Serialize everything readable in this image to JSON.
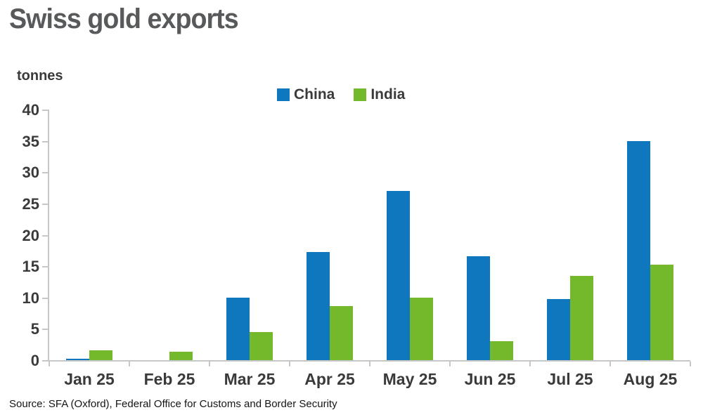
{
  "title": "Swiss gold exports",
  "source": "Source: SFA (Oxford), Federal Office for Customs and Border Security",
  "colors": {
    "china_blue": "#0F77BD",
    "india_green": "#74B82C",
    "axis_gray": "#C6C7C8",
    "title_gray": "#58595B",
    "label_gray": "#3A3A3A"
  },
  "chart_data": {
    "type": "bar",
    "title": "Swiss gold exports",
    "ylabel": "tonnes",
    "xlabel": "",
    "categories": [
      "Jan 25",
      "Feb 25",
      "Mar 25",
      "Apr 25",
      "May 25",
      "Jun 25",
      "Jul 25",
      "Aug 25"
    ],
    "series": [
      {
        "name": "China",
        "color": "#0F77BD",
        "values": [
          0.2,
          0,
          10,
          17.3,
          27,
          16.6,
          9.8,
          35
        ]
      },
      {
        "name": "India",
        "color": "#74B82C",
        "values": [
          1.6,
          1.3,
          4.5,
          8.6,
          10,
          3,
          13.5,
          15.2
        ]
      }
    ],
    "ylim": [
      0,
      40
    ],
    "ytick_step": 5,
    "yticks": [
      0,
      5,
      10,
      15,
      20,
      25,
      30,
      35,
      40
    ],
    "grid": false,
    "legend_position": "top-center"
  }
}
